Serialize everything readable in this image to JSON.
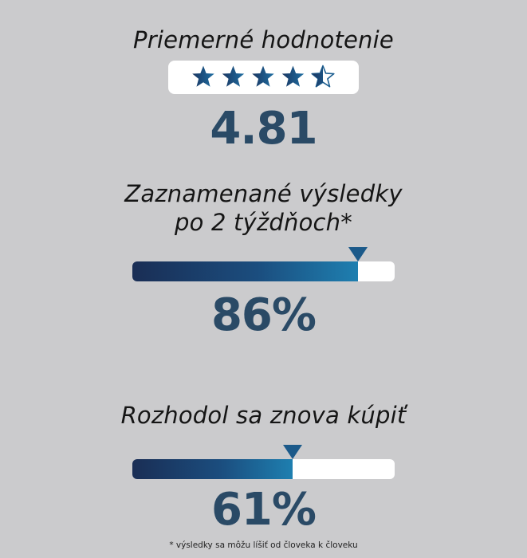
{
  "rating": {
    "title": "Priemerné hodnotenie",
    "value": "4.81",
    "stars_filled": 4.5,
    "stars_total": 5
  },
  "results": {
    "title_line1": "Zaznamenané výsledky",
    "title_line2": "po 2 týždňoch*",
    "value": "86%",
    "fraction": 0.86
  },
  "rebuy": {
    "title": "Rozhodol sa znova kúpiť",
    "value": "61%",
    "fraction": 0.61
  },
  "footnote": "* výsledky sa môžu líšiť od človeka k človeku",
  "colors": {
    "background": "#cbcbcd",
    "accent_dark": "#1a2e55",
    "accent_light": "#1e7fb0",
    "number": "#2a4a66"
  }
}
